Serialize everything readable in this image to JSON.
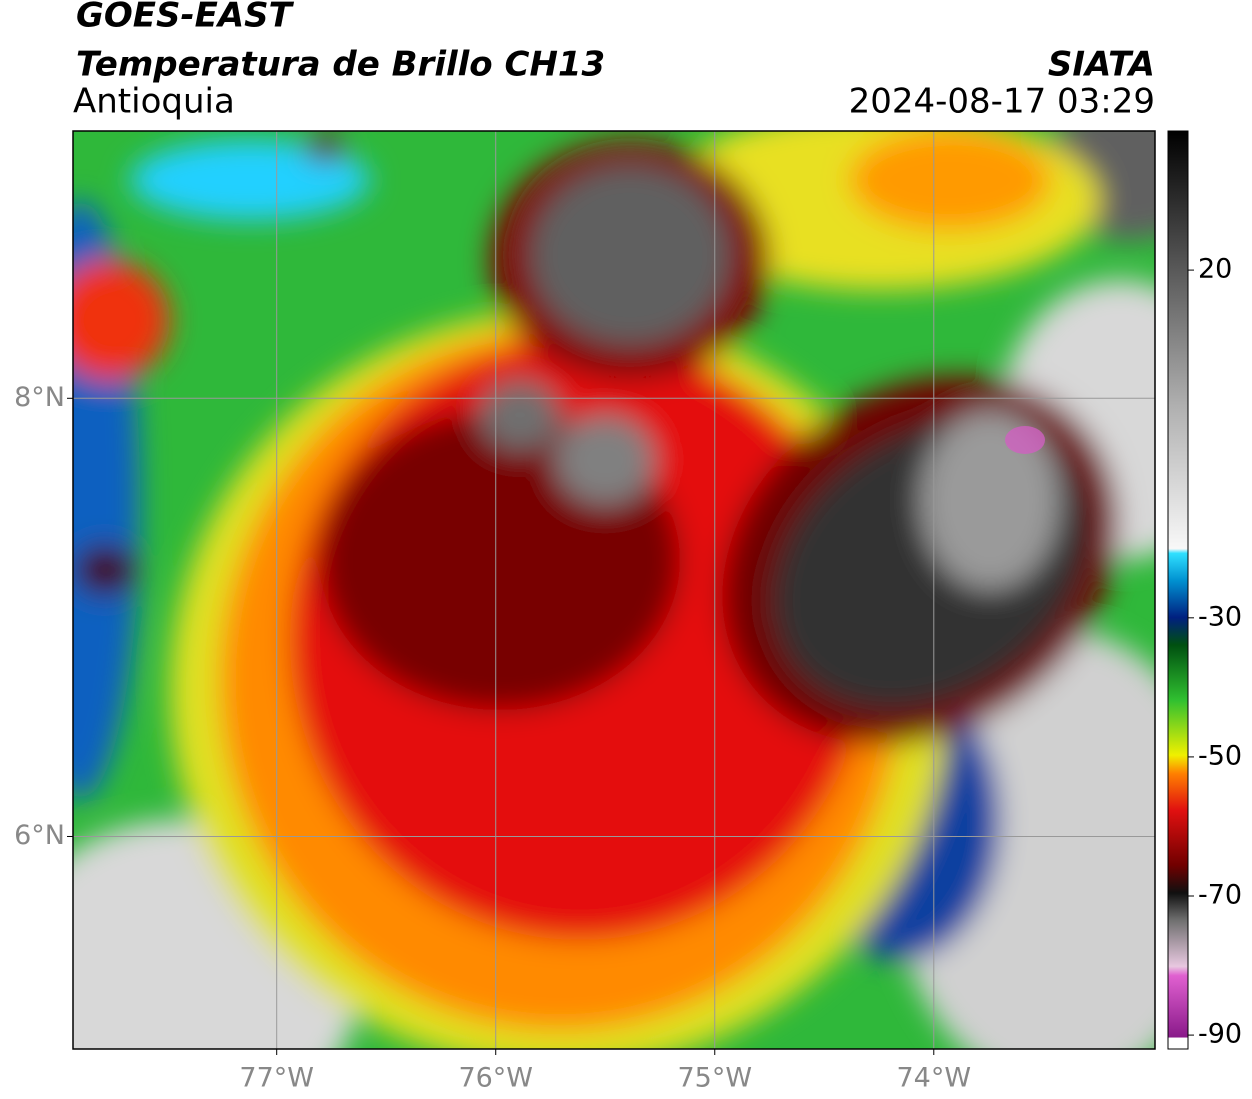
{
  "header": {
    "title": "GOES-EAST",
    "subtitle": "Temperatura de Brillo CH13",
    "region": "Antioquia",
    "source": "SIATA",
    "timestamp": "2024-08-17 03:29"
  },
  "map": {
    "xlim": [
      -77.93,
      -72.99
    ],
    "ylim": [
      5.03,
      9.22
    ],
    "xticks": [
      {
        "value": -77,
        "label": "77°W"
      },
      {
        "value": -76,
        "label": "76°W"
      },
      {
        "value": -75,
        "label": "75°W"
      },
      {
        "value": -74,
        "label": "74°W"
      }
    ],
    "yticks": [
      {
        "value": 8,
        "label": "8°N"
      },
      {
        "value": 6,
        "label": "6°N"
      }
    ],
    "grid": true
  },
  "colorbar": {
    "vlim": [
      -92,
      40
    ],
    "ticks": [
      20,
      -30,
      -50,
      -70,
      -90
    ]
  }
}
